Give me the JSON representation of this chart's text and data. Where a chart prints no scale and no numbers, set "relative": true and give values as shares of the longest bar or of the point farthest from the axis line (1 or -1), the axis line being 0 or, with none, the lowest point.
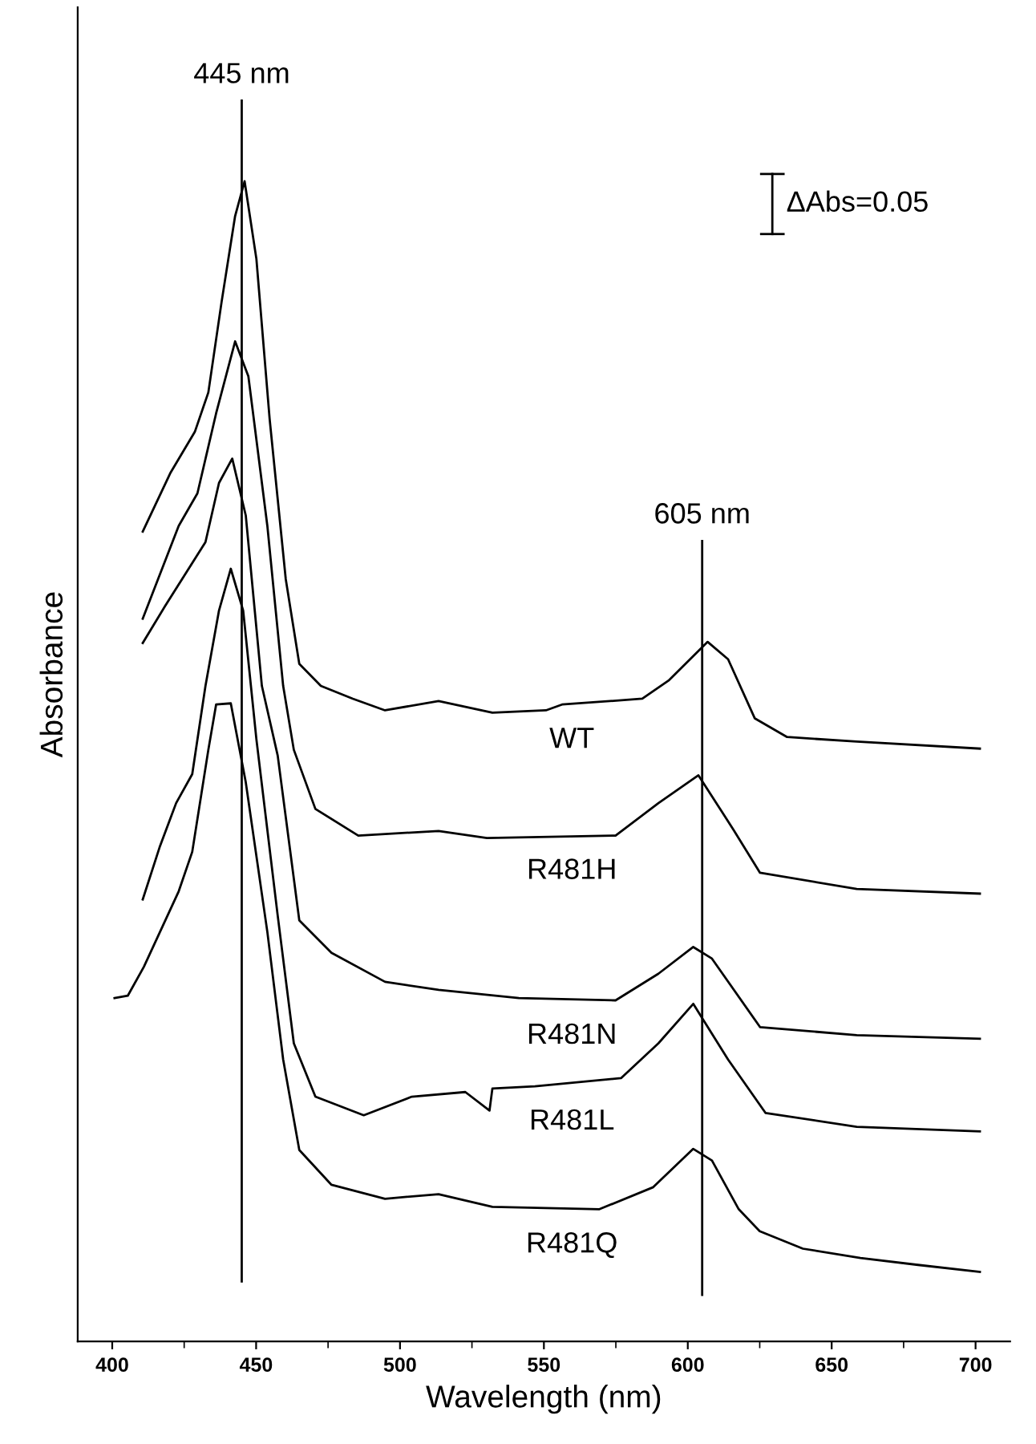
{
  "chart_data": {
    "type": "line",
    "relative": true,
    "xlabel": "Wavelength (nm)",
    "ylabel": "Absorbance",
    "xlim": [
      388,
      712
    ],
    "xticks": [
      400,
      450,
      500,
      550,
      600,
      650,
      700
    ],
    "grid": false,
    "legend": false,
    "marker": "none",
    "line_style": "solid",
    "series": [
      {
        "name": "WT",
        "color": "#000000",
        "x": [
          410.6,
          420.3,
          428.7,
          433.4,
          438.0,
          442.7,
          446.0,
          450.1,
          454.7,
          460.3,
          465.0,
          472.5,
          483.6,
          494.8,
          513.4,
          532.1,
          550.7,
          556.3,
          584.2,
          593.5,
          606.9,
          614.0,
          623.3,
          634.5,
          658.7,
          701.5
        ],
        "values": [
          0.698,
          0.749,
          0.784,
          0.818,
          0.896,
          0.97,
          1.0,
          0.933,
          0.795,
          0.657,
          0.584,
          0.565,
          0.554,
          0.544,
          0.552,
          0.542,
          0.544,
          0.549,
          0.554,
          0.57,
          0.603,
          0.588,
          0.537,
          0.521,
          0.517,
          0.511
        ]
      },
      {
        "name": "R481H",
        "color": "#000000",
        "x": [
          410.6,
          423.1,
          429.6,
          436.1,
          442.7,
          447.3,
          453.9,
          459.4,
          463.1,
          470.6,
          485.5,
          513.4,
          530.2,
          574.9,
          589.8,
          603.7,
          615.9,
          625.1,
          658.7,
          701.5
        ],
        "values": [
          0.623,
          0.703,
          0.731,
          0.8,
          0.862,
          0.832,
          0.703,
          0.565,
          0.51,
          0.459,
          0.436,
          0.44,
          0.434,
          0.436,
          0.464,
          0.488,
          0.441,
          0.404,
          0.39,
          0.386
        ]
      },
      {
        "name": "R481N",
        "color": "#000000",
        "x": [
          410.6,
          418.4,
          432.4,
          437.1,
          441.7,
          446.4,
          452.0,
          457.5,
          465.0,
          476.2,
          494.8,
          513.4,
          541.3,
          574.9,
          589.8,
          601.9,
          608.4,
          625.1,
          658.7,
          701.5
        ],
        "values": [
          0.602,
          0.634,
          0.689,
          0.74,
          0.761,
          0.712,
          0.565,
          0.505,
          0.363,
          0.335,
          0.31,
          0.303,
          0.296,
          0.294,
          0.317,
          0.34,
          0.33,
          0.271,
          0.264,
          0.261
        ]
      },
      {
        "name": "R481L",
        "color": "#000000",
        "x": [
          410.6,
          416.6,
          422.2,
          427.8,
          432.4,
          437.1,
          441.2,
          445.5,
          450.1,
          457.5,
          463.1,
          470.6,
          487.4,
          504.1,
          522.7,
          531.1,
          532.1,
          546.9,
          576.8,
          589.8,
          601.9,
          614.0,
          627.0,
          658.7,
          701.5
        ],
        "values": [
          0.381,
          0.427,
          0.464,
          0.489,
          0.565,
          0.63,
          0.666,
          0.63,
          0.519,
          0.367,
          0.257,
          0.211,
          0.195,
          0.211,
          0.215,
          0.199,
          0.218,
          0.22,
          0.227,
          0.257,
          0.291,
          0.243,
          0.197,
          0.185,
          0.181
        ]
      },
      {
        "name": "R481Q",
        "color": "#000000",
        "x": [
          400.8,
          405.4,
          411.0,
          416.6,
          423.1,
          427.8,
          433.4,
          436.1,
          441.2,
          446.4,
          453.9,
          459.4,
          465.0,
          476.2,
          494.8,
          513.4,
          532.1,
          569.3,
          588.0,
          601.9,
          608.4,
          617.7,
          625,
          640,
          660,
          680,
          701.5
        ],
        "values": [
          0.296,
          0.298,
          0.323,
          0.353,
          0.388,
          0.422,
          0.51,
          0.549,
          0.55,
          0.482,
          0.353,
          0.243,
          0.165,
          0.135,
          0.123,
          0.127,
          0.116,
          0.114,
          0.133,
          0.166,
          0.156,
          0.114,
          0.095,
          0.08,
          0.072,
          0.066,
          0.06
        ]
      }
    ],
    "ref_lines": [
      {
        "axis": "x",
        "value": 445,
        "label": "445 nm",
        "color": "#000000"
      },
      {
        "axis": "x",
        "value": 605,
        "label": "605 nm",
        "color": "#000000"
      }
    ],
    "annotations": [
      "ΔAbs=0.05"
    ]
  }
}
